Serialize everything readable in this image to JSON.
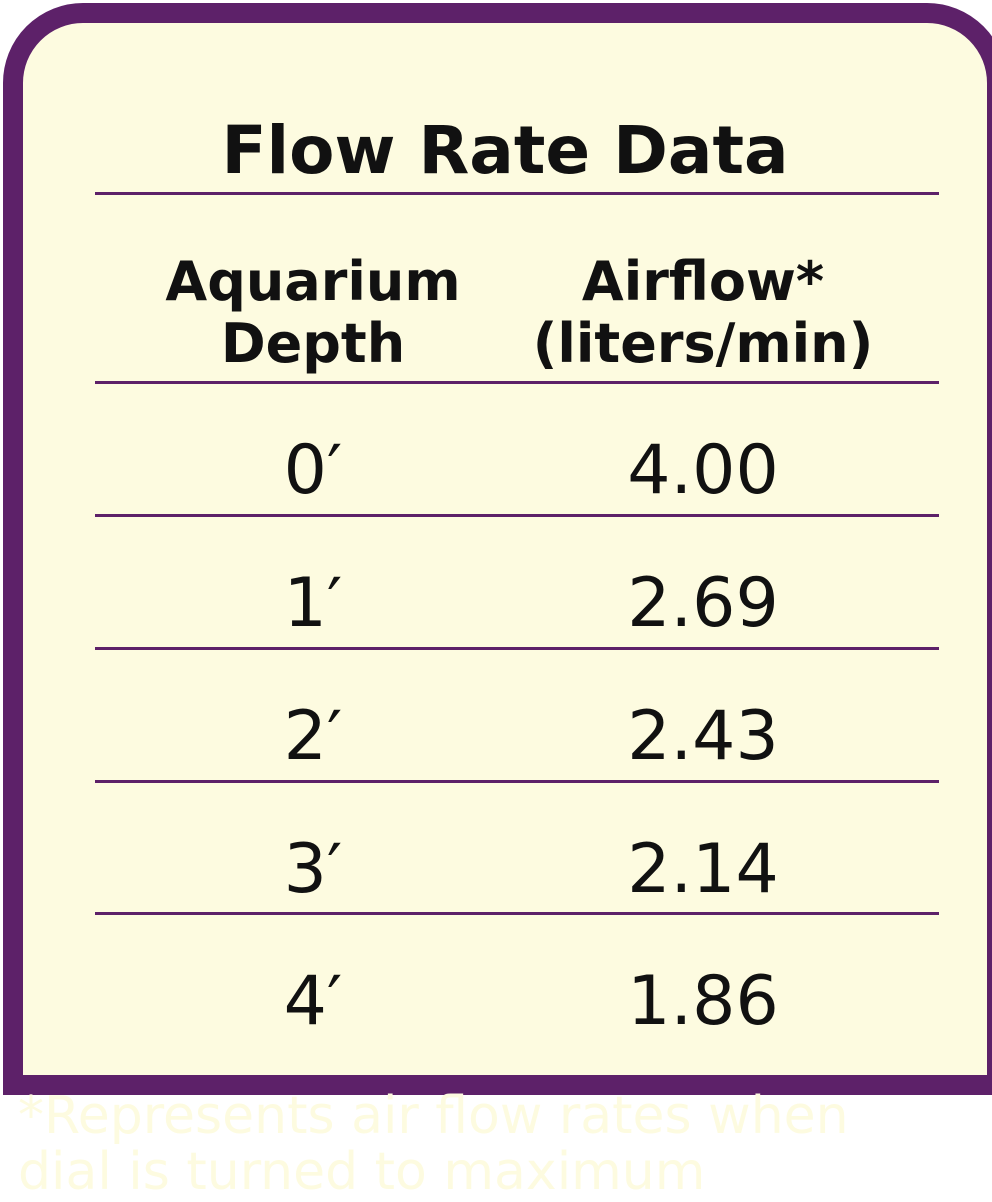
{
  "chart_data": {
    "type": "table",
    "title": "Flow Rate Data",
    "columns": [
      "Aquarium\nDepth",
      "Airflow*\n(liters/min)"
    ],
    "rows": [
      {
        "depth": "0′",
        "airflow": "4.00"
      },
      {
        "depth": "1′",
        "airflow": "2.69"
      },
      {
        "depth": "2′",
        "airflow": "2.43"
      },
      {
        "depth": "3′",
        "airflow": "2.14"
      },
      {
        "depth": "4′",
        "airflow": "1.86"
      }
    ],
    "x": [
      0,
      1,
      2,
      3,
      4
    ],
    "values": [
      4.0,
      2.69,
      2.43,
      2.14,
      1.86
    ],
    "footnote": "*Represents air flow rates when\ndial is turned to maximum"
  },
  "colors": {
    "frame": "#5d2169",
    "background": "#fdfbe0",
    "text": "#111111"
  }
}
